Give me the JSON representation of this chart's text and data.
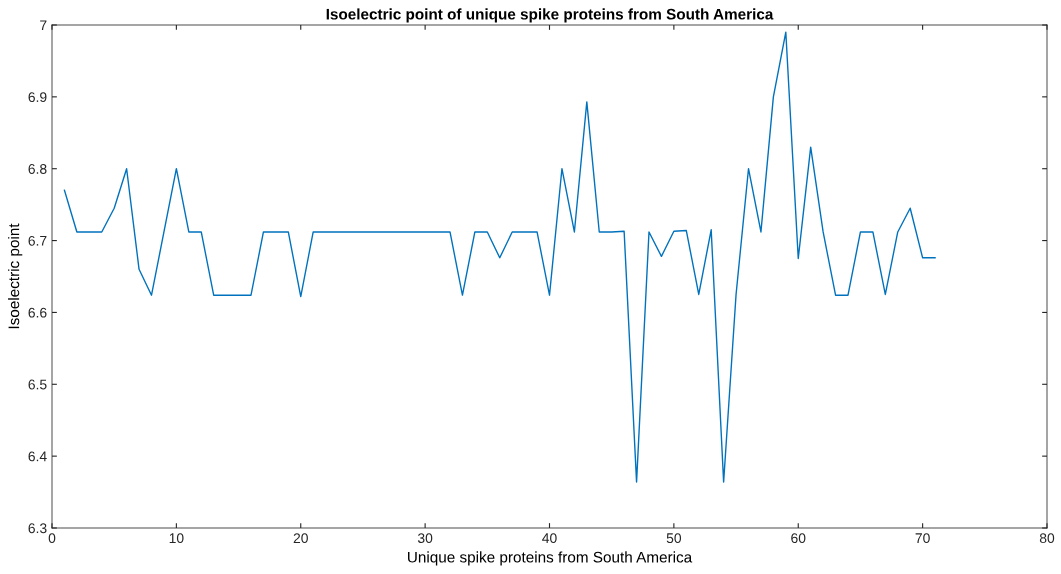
{
  "chart_data": {
    "type": "line",
    "title": "Isoelectric point of unique spike proteins from South America",
    "xlabel": "Unique spike proteins from South America",
    "ylabel": "Isoelectric point",
    "x": [
      1,
      2,
      3,
      4,
      5,
      6,
      7,
      8,
      9,
      10,
      11,
      12,
      13,
      14,
      15,
      16,
      17,
      18,
      19,
      20,
      21,
      22,
      23,
      24,
      25,
      26,
      27,
      28,
      29,
      30,
      31,
      32,
      33,
      34,
      35,
      36,
      37,
      38,
      39,
      40,
      41,
      42,
      43,
      44,
      45,
      46,
      47,
      48,
      49,
      50,
      51,
      52,
      53,
      54,
      55,
      56,
      57,
      58,
      59,
      60,
      61,
      62,
      63,
      64,
      65,
      66,
      67,
      68,
      69,
      70,
      71
    ],
    "series": [
      {
        "color": "#0072bd",
        "values": [
          6.77,
          6.712,
          6.712,
          6.712,
          6.745,
          6.8,
          6.66,
          6.624,
          6.712,
          6.8,
          6.712,
          6.712,
          6.624,
          6.624,
          6.624,
          6.624,
          6.712,
          6.712,
          6.712,
          6.622,
          6.712,
          6.712,
          6.712,
          6.712,
          6.712,
          6.712,
          6.712,
          6.712,
          6.712,
          6.712,
          6.712,
          6.712,
          6.624,
          6.712,
          6.712,
          6.676,
          6.712,
          6.712,
          6.712,
          6.624,
          6.8,
          6.712,
          6.893,
          6.712,
          6.712,
          6.713,
          6.364,
          6.712,
          6.678,
          6.713,
          6.714,
          6.625,
          6.715,
          6.364,
          6.625,
          6.8,
          6.712,
          6.9,
          6.99,
          6.675,
          6.83,
          6.712,
          6.624,
          6.624,
          6.712,
          6.712,
          6.625,
          6.712,
          6.745,
          6.676,
          6.676
        ]
      }
    ],
    "xlim": [
      0,
      80
    ],
    "xticks": [
      0,
      10,
      20,
      30,
      40,
      50,
      60,
      70,
      80
    ],
    "ylim": [
      6.3,
      7
    ],
    "yticks": [
      6.3,
      6.4,
      6.5,
      6.6,
      6.7,
      6.8,
      6.9,
      7
    ],
    "grid": false,
    "legend": false,
    "marker": "none",
    "line_style": "solid"
  }
}
